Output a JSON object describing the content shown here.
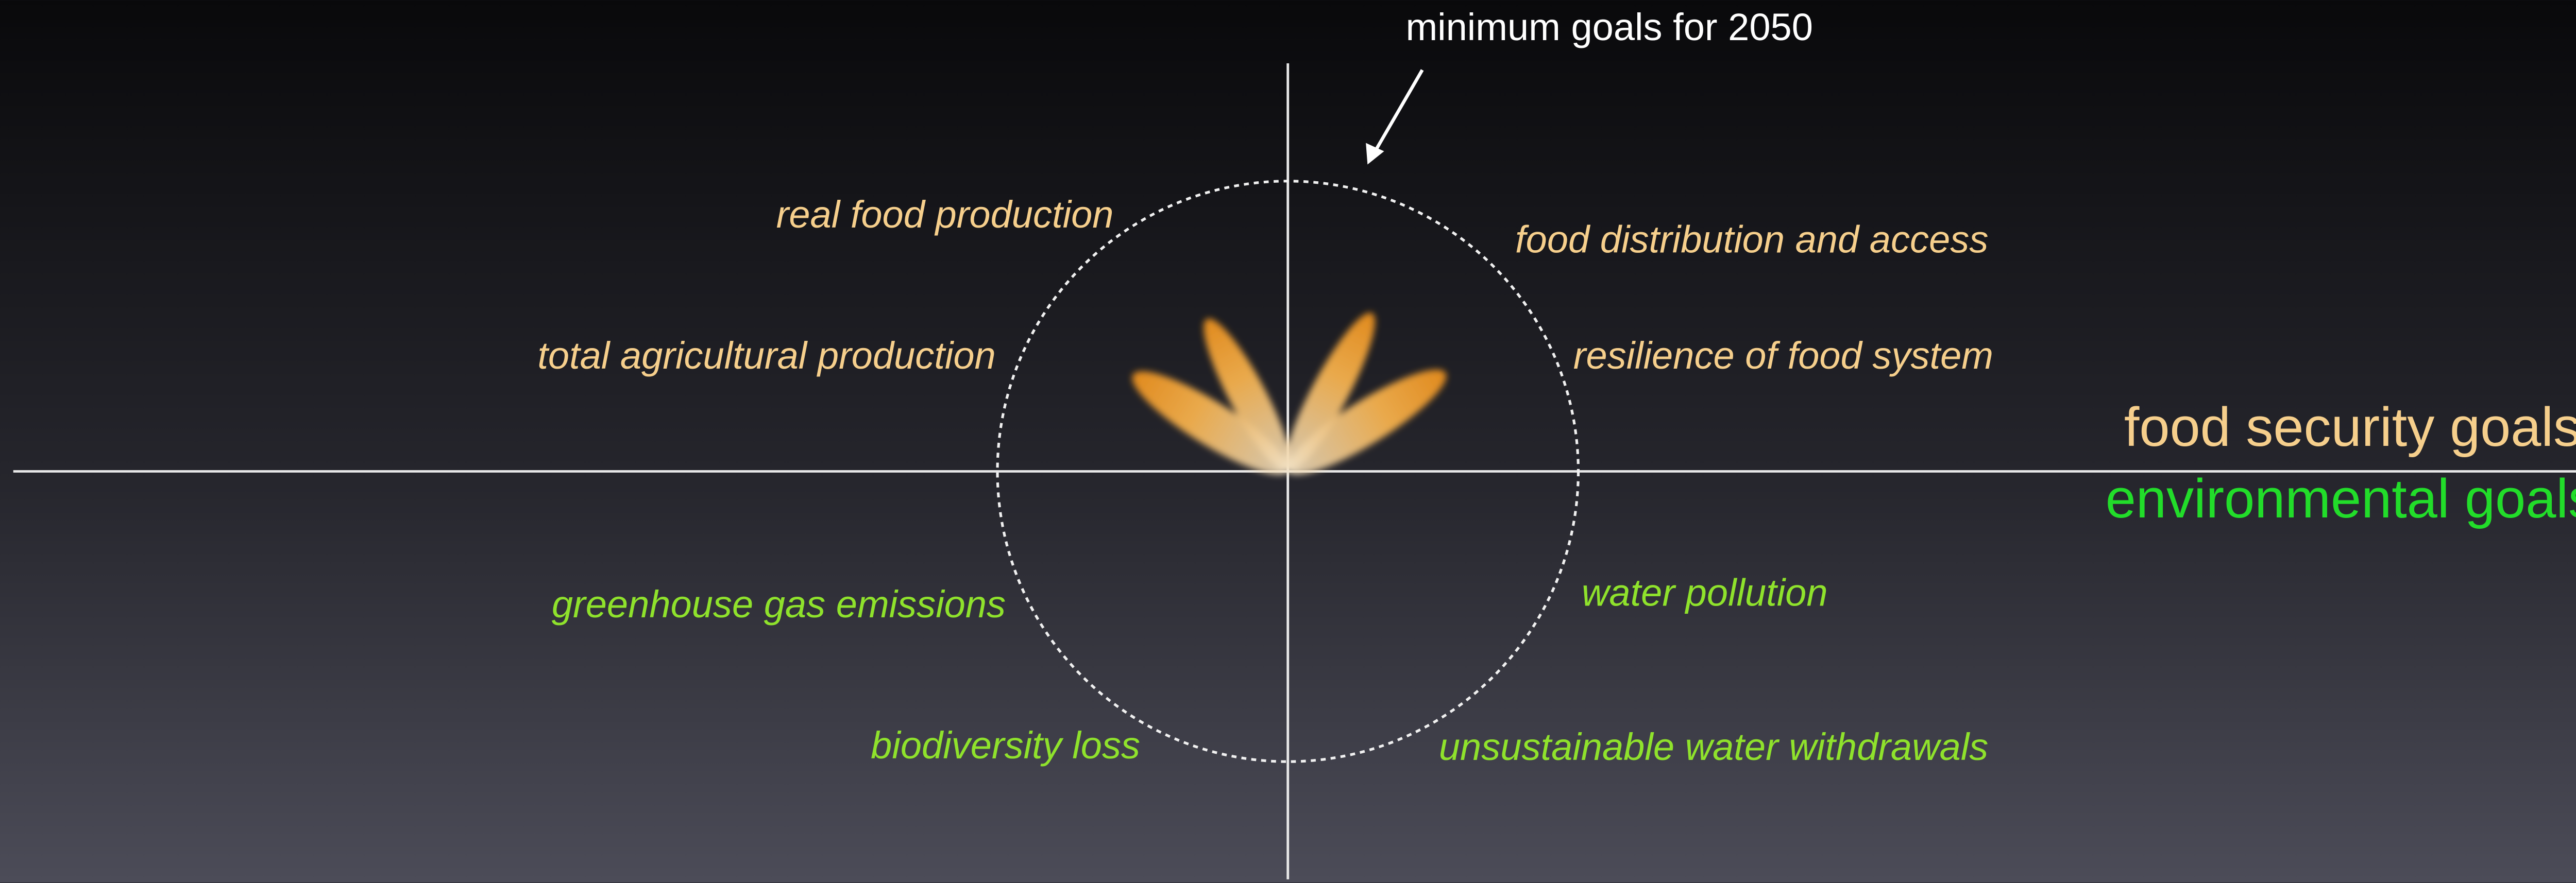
{
  "annotation": "minimum goals for 2050",
  "divider_labels": {
    "above": "food security goals",
    "below": "environmental goals"
  },
  "food_security_goals": [
    "real food production",
    "food distribution and access",
    "total agricultural production",
    "resilience of food system"
  ],
  "environmental_goals": [
    "greenhouse gas emissions",
    "water pollution",
    "biodiversity loss",
    "unsustainable water withdrawals"
  ]
}
